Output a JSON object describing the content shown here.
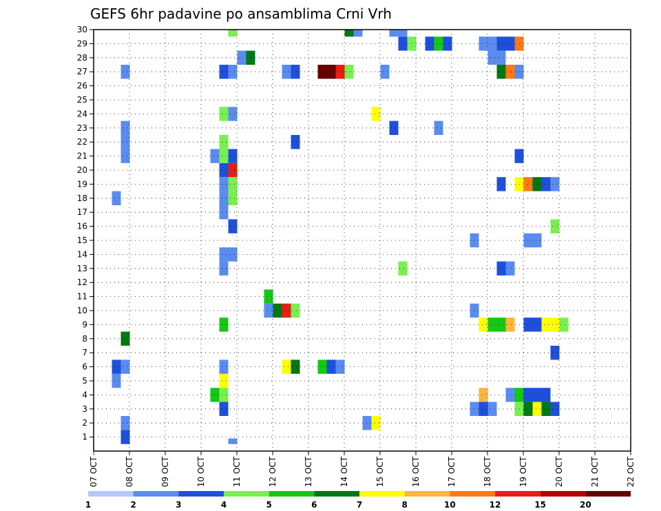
{
  "chart_data": {
    "type": "heatmap",
    "title": "GEFS 6hr padavine po ansamblima Crni Vrh",
    "x_tick_labels": [
      "07 OCT",
      "08 OCT",
      "09 OCT",
      "10 OCT",
      "11 OCT",
      "12 OCT",
      "13 OCT",
      "14 OCT",
      "15 OCT",
      "16 OCT",
      "17 OCT",
      "18 OCT",
      "19 OCT",
      "20 OCT",
      "21 OCT",
      "22 OCT"
    ],
    "y_tick_labels": [
      "1",
      "2",
      "3",
      "4",
      "5",
      "6",
      "7",
      "8",
      "9",
      "10",
      "11",
      "12",
      "13",
      "14",
      "15",
      "16",
      "17",
      "18",
      "19",
      "20",
      "21",
      "22",
      "23",
      "24",
      "25",
      "26",
      "27",
      "28",
      "29",
      "30"
    ],
    "xlim_steps": [
      0,
      60
    ],
    "ylim_members": [
      0,
      30
    ],
    "grid": true,
    "colorbar": {
      "placement": "bottom",
      "levels": [
        "1",
        "2",
        "3",
        "4",
        "5",
        "6",
        "7",
        "8",
        "10",
        "12",
        "15",
        "20"
      ],
      "colors": [
        "#b4c8ff",
        "#5a8cf0",
        "#1e50dc",
        "#78f050",
        "#14c814",
        "#007814",
        "#ffff00",
        "#ffb43c",
        "#ff7814",
        "#e61e14",
        "#b40000",
        "#640000"
      ]
    },
    "cells": [
      {
        "x": 2,
        "y": 5,
        "bin": 1
      },
      {
        "x": 2,
        "y": 6,
        "bin": 2
      },
      {
        "x": 3,
        "y": 6,
        "bin": 1
      },
      {
        "x": 3,
        "y": 8,
        "bin": 5
      },
      {
        "x": 3,
        "y": 2,
        "bin": 1
      },
      {
        "x": 3,
        "y": 1,
        "bin": 2
      },
      {
        "x": 3,
        "y": 21,
        "bin": 1
      },
      {
        "x": 3,
        "y": 22,
        "bin": 1
      },
      {
        "x": 3,
        "y": 23,
        "bin": 1
      },
      {
        "x": 3,
        "y": 27,
        "bin": 1
      },
      {
        "x": 2,
        "y": 18,
        "bin": 1
      },
      {
        "x": 13,
        "y": 21,
        "bin": 1
      },
      {
        "x": 13,
        "y": 4,
        "bin": 4
      },
      {
        "x": 14,
        "y": 4,
        "bin": 3
      },
      {
        "x": 14,
        "y": 3,
        "bin": 2
      },
      {
        "x": 14,
        "y": 5,
        "bin": 6
      },
      {
        "x": 14,
        "y": 6,
        "bin": 1
      },
      {
        "x": 14,
        "y": 9,
        "bin": 4
      },
      {
        "x": 14,
        "y": 13,
        "bin": 1
      },
      {
        "x": 14,
        "y": 14,
        "bin": 1
      },
      {
        "x": 14,
        "y": 17,
        "bin": 1
      },
      {
        "x": 14,
        "y": 18,
        "bin": 1
      },
      {
        "x": 14,
        "y": 19,
        "bin": 1
      },
      {
        "x": 14,
        "y": 20,
        "bin": 2
      },
      {
        "x": 14,
        "y": 21,
        "bin": 3
      },
      {
        "x": 14,
        "y": 22,
        "bin": 3
      },
      {
        "x": 14,
        "y": 24,
        "bin": 3
      },
      {
        "x": 14,
        "y": 27,
        "bin": 2
      },
      {
        "x": 15,
        "y": 14,
        "bin": 1
      },
      {
        "x": 15,
        "y": 16,
        "bin": 2
      },
      {
        "x": 15,
        "y": 18,
        "bin": 3
      },
      {
        "x": 15,
        "y": 19,
        "bin": 3
      },
      {
        "x": 15,
        "y": 20,
        "bin": 9
      },
      {
        "x": 15,
        "y": 21,
        "bin": 2
      },
      {
        "x": 15,
        "y": 24,
        "bin": 1
      },
      {
        "x": 15,
        "y": 27,
        "bin": 1
      },
      {
        "x": 15,
        "y": 30,
        "bin": 3
      },
      {
        "x": 15,
        "y": 0,
        "bin": 1
      },
      {
        "x": 16,
        "y": 28,
        "bin": 1
      },
      {
        "x": 17,
        "y": 28,
        "bin": 5
      },
      {
        "x": 19,
        "y": 10,
        "bin": 1
      },
      {
        "x": 19,
        "y": 11,
        "bin": 4
      },
      {
        "x": 20,
        "y": 10,
        "bin": 5
      },
      {
        "x": 21,
        "y": 10,
        "bin": 9
      },
      {
        "x": 22,
        "y": 10,
        "bin": 3
      },
      {
        "x": 21,
        "y": 6,
        "bin": 6
      },
      {
        "x": 22,
        "y": 6,
        "bin": 5
      },
      {
        "x": 21,
        "y": 27,
        "bin": 1
      },
      {
        "x": 22,
        "y": 27,
        "bin": 2
      },
      {
        "x": 22,
        "y": 22,
        "bin": 2
      },
      {
        "x": 25,
        "y": 27,
        "bin": 11
      },
      {
        "x": 26,
        "y": 27,
        "bin": 11
      },
      {
        "x": 27,
        "y": 27,
        "bin": 9
      },
      {
        "x": 28,
        "y": 27,
        "bin": 3
      },
      {
        "x": 25,
        "y": 6,
        "bin": 4
      },
      {
        "x": 26,
        "y": 6,
        "bin": 2
      },
      {
        "x": 27,
        "y": 6,
        "bin": 1
      },
      {
        "x": 28,
        "y": 30,
        "bin": 5
      },
      {
        "x": 29,
        "y": 30,
        "bin": 1
      },
      {
        "x": 30,
        "y": 2,
        "bin": 1
      },
      {
        "x": 31,
        "y": 2,
        "bin": 6
      },
      {
        "x": 31,
        "y": 24,
        "bin": 6
      },
      {
        "x": 32,
        "y": 27,
        "bin": 1
      },
      {
        "x": 33,
        "y": 23,
        "bin": 2
      },
      {
        "x": 33,
        "y": 30,
        "bin": 1
      },
      {
        "x": 34,
        "y": 30,
        "bin": 1
      },
      {
        "x": 34,
        "y": 29,
        "bin": 2
      },
      {
        "x": 35,
        "y": 29,
        "bin": 3
      },
      {
        "x": 34,
        "y": 13,
        "bin": 3
      },
      {
        "x": 37,
        "y": 29,
        "bin": 2
      },
      {
        "x": 38,
        "y": 29,
        "bin": 4
      },
      {
        "x": 39,
        "y": 29,
        "bin": 2
      },
      {
        "x": 38,
        "y": 23,
        "bin": 1
      },
      {
        "x": 42,
        "y": 3,
        "bin": 1
      },
      {
        "x": 42,
        "y": 10,
        "bin": 1
      },
      {
        "x": 42,
        "y": 15,
        "bin": 1
      },
      {
        "x": 43,
        "y": 4,
        "bin": 7
      },
      {
        "x": 43,
        "y": 3,
        "bin": 2
      },
      {
        "x": 43,
        "y": 9,
        "bin": 6
      },
      {
        "x": 43,
        "y": 29,
        "bin": 1
      },
      {
        "x": 44,
        "y": 3,
        "bin": 1
      },
      {
        "x": 44,
        "y": 9,
        "bin": 4
      },
      {
        "x": 44,
        "y": 28,
        "bin": 1
      },
      {
        "x": 44,
        "y": 29,
        "bin": 1
      },
      {
        "x": 45,
        "y": 9,
        "bin": 4
      },
      {
        "x": 45,
        "y": 13,
        "bin": 2
      },
      {
        "x": 45,
        "y": 19,
        "bin": 2
      },
      {
        "x": 45,
        "y": 28,
        "bin": 1
      },
      {
        "x": 45,
        "y": 29,
        "bin": 2
      },
      {
        "x": 45,
        "y": 27,
        "bin": 5
      },
      {
        "x": 46,
        "y": 9,
        "bin": 7
      },
      {
        "x": 46,
        "y": 4,
        "bin": 1
      },
      {
        "x": 46,
        "y": 13,
        "bin": 1
      },
      {
        "x": 46,
        "y": 29,
        "bin": 2
      },
      {
        "x": 46,
        "y": 27,
        "bin": 8
      },
      {
        "x": 47,
        "y": 3,
        "bin": 3
      },
      {
        "x": 47,
        "y": 4,
        "bin": 4
      },
      {
        "x": 47,
        "y": 19,
        "bin": 6
      },
      {
        "x": 47,
        "y": 21,
        "bin": 2
      },
      {
        "x": 47,
        "y": 27,
        "bin": 1
      },
      {
        "x": 47,
        "y": 29,
        "bin": 8
      },
      {
        "x": 48,
        "y": 3,
        "bin": 5
      },
      {
        "x": 48,
        "y": 4,
        "bin": 2
      },
      {
        "x": 48,
        "y": 9,
        "bin": 2
      },
      {
        "x": 48,
        "y": 15,
        "bin": 1
      },
      {
        "x": 48,
        "y": 19,
        "bin": 8
      },
      {
        "x": 49,
        "y": 3,
        "bin": 6
      },
      {
        "x": 49,
        "y": 4,
        "bin": 2
      },
      {
        "x": 49,
        "y": 9,
        "bin": 2
      },
      {
        "x": 49,
        "y": 15,
        "bin": 1
      },
      {
        "x": 49,
        "y": 19,
        "bin": 5
      },
      {
        "x": 50,
        "y": 3,
        "bin": 5
      },
      {
        "x": 50,
        "y": 4,
        "bin": 2
      },
      {
        "x": 50,
        "y": 9,
        "bin": 6
      },
      {
        "x": 50,
        "y": 19,
        "bin": 2
      },
      {
        "x": 51,
        "y": 3,
        "bin": 2
      },
      {
        "x": 51,
        "y": 9,
        "bin": 6
      },
      {
        "x": 51,
        "y": 19,
        "bin": 1
      },
      {
        "x": 51,
        "y": 16,
        "bin": 3
      },
      {
        "x": 51,
        "y": 7,
        "bin": 2
      },
      {
        "x": 52,
        "y": 9,
        "bin": 3
      }
    ]
  }
}
